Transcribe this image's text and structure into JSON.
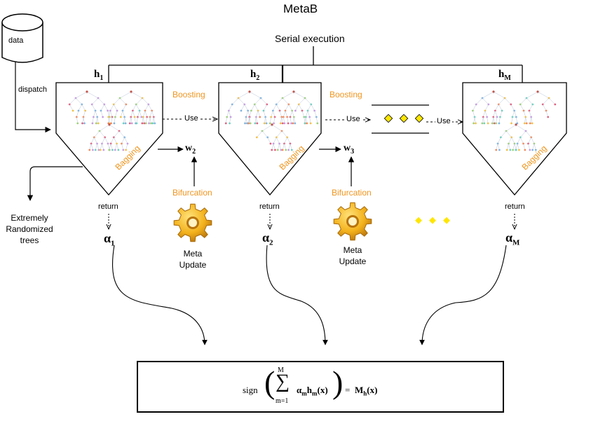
{
  "title": "MetaB",
  "serial_label": "Serial execution",
  "data_label": "data",
  "dispatch_label": "dispatch",
  "use_label": "Use",
  "boosting_label": "Boosting",
  "bagging_label": "Bagging",
  "bifurcation_label": "Bifurcation",
  "return_label": "return",
  "extra_trees_lines": [
    "Extremely",
    "Randomized",
    "trees"
  ],
  "meta_update_lines": [
    "Meta",
    "Update"
  ],
  "learners": [
    {
      "h": "h",
      "h_sub": "1",
      "alpha": "α",
      "alpha_sub": "1"
    },
    {
      "h": "h",
      "h_sub": "2",
      "alpha": "α",
      "alpha_sub": "2"
    },
    {
      "h": "h",
      "h_sub": "M",
      "alpha": "α",
      "alpha_sub": "M"
    }
  ],
  "weights": [
    {
      "w": "w",
      "sub": "2"
    },
    {
      "w": "w",
      "sub": "3"
    }
  ],
  "formula": {
    "sign": "sign",
    "sum_upper": "M",
    "sum_symbol": "∑",
    "sum_lower": "m=1",
    "term_alpha": "α",
    "term_alpha_sub": "m",
    "term_h": "h",
    "term_h_sub": "m",
    "arg": "(x)",
    "equals": "=",
    "rhs": "M",
    "rhs_sub": "h",
    "rhs_arg": "(x)"
  },
  "colors": {
    "accent_orange": "#f0951e",
    "diamond_yellow": "#ffe600",
    "gear_gold": "#f3b21c"
  }
}
